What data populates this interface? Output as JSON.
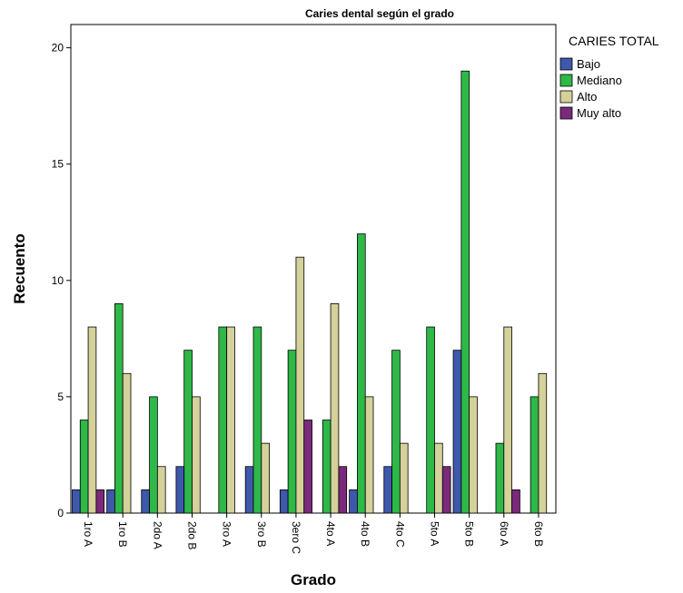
{
  "chart_data": {
    "type": "bar",
    "title": "Caries dental según el grado",
    "xlabel": "Grado",
    "ylabel": "Recuento",
    "ylim": [
      0,
      21
    ],
    "yticks": [
      "0",
      "5",
      "10",
      "15",
      "20"
    ],
    "legend_title": "CARIES TOTAL",
    "legend_position": "right",
    "grid": false,
    "categories": [
      "1ro A",
      "1ro B",
      "2do A",
      "2do B",
      "3ro A",
      "3ro B",
      "3ero C",
      "4to A",
      "4to B",
      "4to C",
      "5to A",
      "5to B",
      "6to A",
      "6to B"
    ],
    "series": [
      {
        "name": "Bajo",
        "color": "#3e58ac",
        "values": [
          1,
          1,
          1,
          2,
          0,
          2,
          1,
          0,
          1,
          2,
          0,
          7,
          0,
          0
        ]
      },
      {
        "name": "Mediano",
        "color": "#2eb848",
        "values": [
          4,
          9,
          5,
          7,
          8,
          8,
          7,
          4,
          12,
          7,
          8,
          19,
          3,
          5
        ]
      },
      {
        "name": "Alto",
        "color": "#d4d19a",
        "values": [
          8,
          6,
          2,
          5,
          8,
          3,
          11,
          9,
          5,
          3,
          3,
          5,
          8,
          6
        ]
      },
      {
        "name": "Muy alto",
        "color": "#7a2a7b",
        "values": [
          1,
          0,
          0,
          0,
          0,
          0,
          4,
          2,
          0,
          0,
          2,
          0,
          1,
          0
        ]
      }
    ]
  }
}
